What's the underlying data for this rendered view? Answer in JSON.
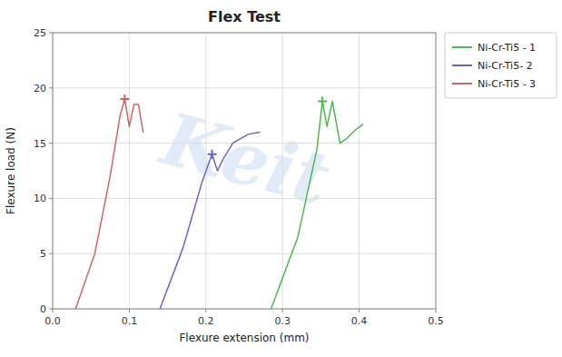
{
  "chart_data": {
    "type": "line",
    "title": "Flex Test",
    "x_label": "Flexure extension (mm)",
    "y_label": "Flexure load (N)",
    "annotations": [
      "Keit"
    ],
    "xlim": [
      0.0,
      0.5
    ],
    "ylim": [
      0,
      25
    ],
    "xticks": [
      {
        "value": 0,
        "label": "0.0"
      },
      0.1,
      0.2,
      0.3,
      0.4,
      0.5
    ],
    "yticks": [
      0,
      5,
      10,
      15,
      20,
      25
    ],
    "grid": true,
    "legend": "right",
    "series": [
      {
        "name": "Ni-Cr-Ti5 - 1",
        "color": "#4db84d",
        "x": [
          0.285,
          0.32,
          0.345,
          0.352,
          0.358,
          0.365,
          0.375,
          0.385,
          0.395,
          0.405
        ],
        "values": [
          0.0,
          6.5,
          14.5,
          18.8,
          16.5,
          18.8,
          15.0,
          15.5,
          16.2,
          16.7
        ],
        "peak_x": 0.352,
        "peak_y": 18.8
      },
      {
        "name": "Ni-Cr-Ti5- 2",
        "color": "#6666cc",
        "x": [
          0.14,
          0.17,
          0.195,
          0.208,
          0.215,
          0.222,
          0.235,
          0.255,
          0.27
        ],
        "values": [
          0.0,
          5.5,
          11.5,
          14.0,
          12.5,
          13.5,
          15.0,
          15.8,
          16.0
        ],
        "peak_x": 0.208,
        "peak_y": 14.0
      },
      {
        "name": "Ni-Cr-Ti5 - 3",
        "color": "#cc6666",
        "x": [
          0.03,
          0.055,
          0.075,
          0.088,
          0.094,
          0.1,
          0.106,
          0.112,
          0.118
        ],
        "values": [
          0.0,
          5.0,
          12.0,
          17.5,
          19.0,
          16.5,
          18.5,
          18.5,
          16.0
        ],
        "peak_x": 0.094,
        "peak_y": 19.0
      }
    ]
  }
}
